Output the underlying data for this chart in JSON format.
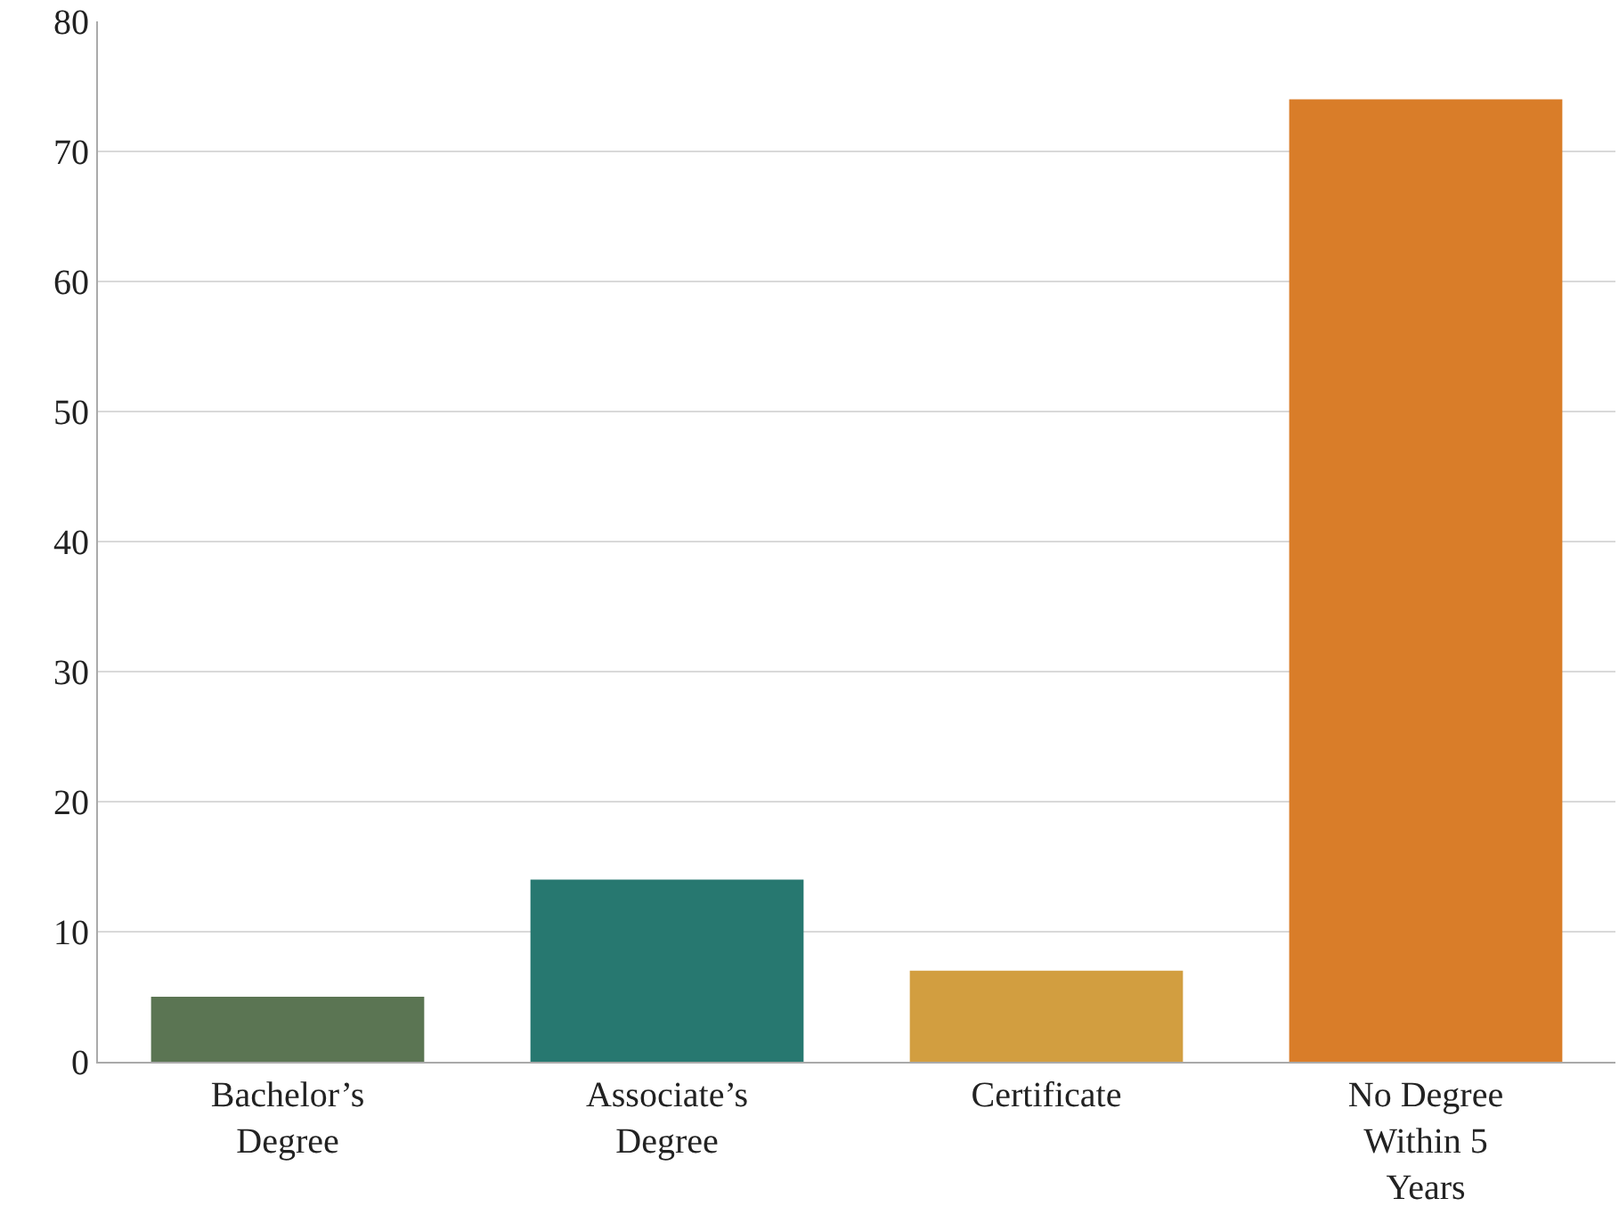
{
  "chart_data": {
    "type": "bar",
    "categories": [
      "Bachelor’s Degree",
      "Associate’s Degree",
      "Certificate",
      "No Degree Within 5 Years"
    ],
    "values": [
      5,
      14,
      7,
      74
    ],
    "colors": [
      "#5b7553",
      "#277870",
      "#d29e40",
      "#d97d29"
    ],
    "ylim": [
      0,
      80
    ],
    "yticks": [
      0,
      10,
      20,
      30,
      40,
      50,
      60,
      70,
      80
    ],
    "grid": "y"
  }
}
